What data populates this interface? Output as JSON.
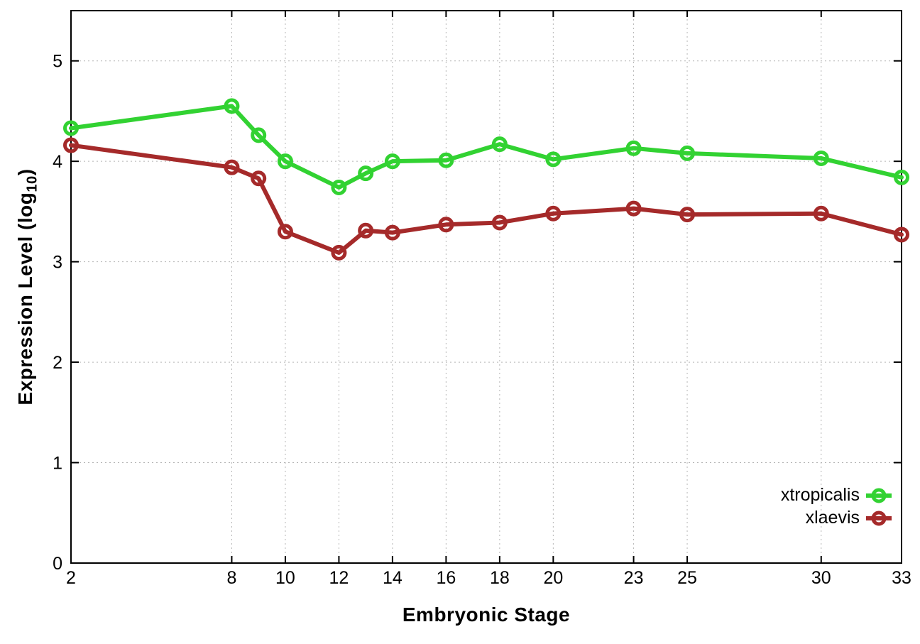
{
  "chart_data": {
    "type": "line",
    "xlabel": "Embryonic Stage",
    "ylabel": "Expression Level (log10)",
    "ylabel_parts": {
      "prefix": "Expression Level (log",
      "sub": "10",
      "suffix": ")"
    },
    "x": [
      2,
      8,
      9,
      10,
      12,
      13,
      14,
      16,
      18,
      20,
      23,
      25,
      30,
      33
    ],
    "series": [
      {
        "name": "xtropicalis",
        "color": "#32d232",
        "values": [
          4.33,
          4.55,
          4.26,
          4.0,
          3.74,
          3.88,
          4.0,
          4.01,
          4.17,
          4.02,
          4.13,
          4.08,
          4.03,
          3.84
        ]
      },
      {
        "name": "xlaevis",
        "color": "#a52a2a",
        "values": [
          4.16,
          3.94,
          3.83,
          3.3,
          3.09,
          3.31,
          3.29,
          3.37,
          3.39,
          3.48,
          3.53,
          3.47,
          3.48,
          3.27
        ]
      }
    ],
    "xticks": [
      2,
      8,
      10,
      12,
      14,
      16,
      18,
      20,
      23,
      25,
      30,
      33
    ],
    "yticks": [
      0,
      1,
      2,
      3,
      4,
      5
    ],
    "xlim": [
      2,
      33
    ],
    "ylim": [
      0,
      5.5
    ],
    "grid": true,
    "grid_style": "dotted",
    "legend_position": "inside-bottom-right",
    "marker": "open-circle",
    "background": "#ffffff",
    "axis_color": "#000000",
    "grid_color": "#b5b5b5",
    "text_color": "#000000"
  }
}
